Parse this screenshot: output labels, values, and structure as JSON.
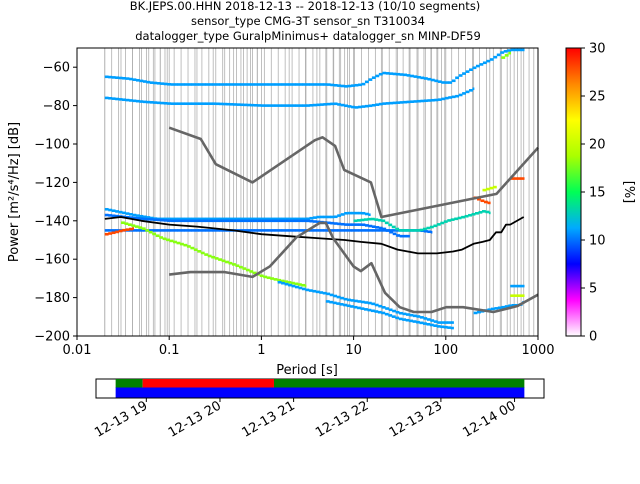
{
  "header": {
    "line1": "BK.JEPS.00.HHN   2018-12-13 -- 2018-12-13  (10/10 segments)",
    "line2": "sensor_type CMG-3T sensor_sn T310034",
    "line3": "datalogger_type GuralpMinimus+ datalogger_sn MINP-DF59"
  },
  "chart_data": [
    {
      "type": "heatmap",
      "title": "",
      "xlabel": "Period [s]",
      "ylabel": "Power [m²/s⁴/Hz] [dB]",
      "xscale": "log",
      "xlim": [
        0.01,
        1000
      ],
      "ylim": [
        -200,
        -50
      ],
      "x_ticks": [
        {
          "value": 0.01,
          "label": "0.01"
        },
        {
          "value": 0.1,
          "label": "0.1"
        },
        {
          "value": 1,
          "label": "1"
        },
        {
          "value": 10,
          "label": "10"
        },
        {
          "value": 100,
          "label": "100"
        },
        {
          "value": 1000,
          "label": "1000"
        }
      ],
      "y_ticks": [
        {
          "value": -60,
          "label": "−60"
        },
        {
          "value": -80,
          "label": "−80"
        },
        {
          "value": -100,
          "label": "−100"
        },
        {
          "value": -120,
          "label": "−120"
        },
        {
          "value": -140,
          "label": "−140"
        },
        {
          "value": -160,
          "label": "−160"
        },
        {
          "value": -180,
          "label": "−180"
        },
        {
          "value": -200,
          "label": "−200"
        }
      ],
      "grid": "vertical lines at period bins",
      "colorbar": {
        "label": "[%]",
        "range": [
          0,
          30
        ],
        "ticks": [
          {
            "value": 0,
            "label": "0"
          },
          {
            "value": 5,
            "label": "5"
          },
          {
            "value": 10,
            "label": "10"
          },
          {
            "value": 15,
            "label": "15"
          },
          {
            "value": 20,
            "label": "20"
          },
          {
            "value": 25,
            "label": "25"
          },
          {
            "value": 30,
            "label": "30"
          }
        ],
        "colormap": [
          "#ffffff",
          "#ff00ff",
          "#0000ff",
          "#00aaff",
          "#00ff55",
          "#aaff00",
          "#ffff00",
          "#ff8800",
          "#ff0000"
        ]
      },
      "series": [
        {
          "role": "psd-band",
          "percent": 11,
          "points": [
            [
              0.02,
              -65
            ],
            [
              0.035,
              -66
            ],
            [
              0.06,
              -68
            ],
            [
              0.1,
              -69
            ],
            [
              0.3,
              -69
            ],
            [
              1,
              -69
            ],
            [
              3,
              -69
            ],
            [
              5,
              -69
            ],
            [
              8,
              -70
            ],
            [
              12,
              -69
            ],
            [
              15,
              -66
            ],
            [
              20,
              -63
            ],
            [
              35,
              -64
            ],
            [
              60,
              -66
            ],
            [
              90,
              -68
            ],
            [
              110,
              -68
            ],
            [
              130,
              -65
            ],
            [
              200,
              -60
            ],
            [
              300,
              -56
            ],
            [
              400,
              -52
            ],
            [
              500,
              -51
            ],
            [
              700,
              -51
            ]
          ]
        },
        {
          "role": "psd-band",
          "percent": 11,
          "points": [
            [
              0.02,
              -76
            ],
            [
              0.05,
              -78
            ],
            [
              0.1,
              -79
            ],
            [
              0.3,
              -79
            ],
            [
              1,
              -80
            ],
            [
              3,
              -80
            ],
            [
              6,
              -79
            ],
            [
              10,
              -81
            ],
            [
              15,
              -80
            ],
            [
              20,
              -79
            ],
            [
              40,
              -78
            ],
            [
              80,
              -77
            ],
            [
              100,
              -76
            ],
            [
              130,
              -75
            ],
            [
              200,
              -71
            ]
          ]
        },
        {
          "role": "psd-band",
          "percent": 11,
          "points": [
            [
              0.02,
              -134
            ],
            [
              0.04,
              -137
            ],
            [
              0.07,
              -139
            ],
            [
              0.2,
              -139
            ],
            [
              0.5,
              -139
            ],
            [
              1,
              -139
            ],
            [
              2,
              -139
            ],
            [
              3,
              -139
            ],
            [
              4,
              -138
            ],
            [
              6,
              -138
            ],
            [
              8,
              -136
            ],
            [
              12,
              -136
            ],
            [
              15,
              -137
            ]
          ]
        },
        {
          "role": "psd-band",
          "percent": 10,
          "points": [
            [
              0.02,
              -137
            ],
            [
              0.05,
              -139
            ],
            [
              0.1,
              -140
            ],
            [
              0.5,
              -140
            ],
            [
              1,
              -140
            ],
            [
              2,
              -140
            ],
            [
              3,
              -140
            ],
            [
              5,
              -141
            ],
            [
              8,
              -142
            ],
            [
              12,
              -142
            ],
            [
              20,
              -144
            ],
            [
              30,
              -148
            ],
            [
              40,
              -148
            ]
          ]
        },
        {
          "role": "psd-band",
          "percent": 10,
          "points": [
            [
              0.02,
              -145
            ],
            [
              0.1,
              -145
            ],
            [
              0.5,
              -145
            ],
            [
              1,
              -145
            ],
            [
              3,
              -145
            ],
            [
              10,
              -145
            ],
            [
              20,
              -145
            ],
            [
              30,
              -145
            ],
            [
              50,
              -145
            ],
            [
              70,
              -146
            ]
          ]
        },
        {
          "role": "psd-band",
          "percent": 18,
          "points": [
            [
              0.03,
              -141
            ],
            [
              0.05,
              -144
            ],
            [
              0.08,
              -149
            ],
            [
              0.15,
              -153
            ],
            [
              0.25,
              -158
            ],
            [
              0.5,
              -163
            ],
            [
              1,
              -169
            ],
            [
              1.5,
              -171
            ],
            [
              3,
              -174
            ]
          ]
        },
        {
          "role": "psd-band",
          "percent": 11,
          "points": [
            [
              1.5,
              -172
            ],
            [
              3,
              -176
            ],
            [
              5,
              -178
            ],
            [
              8,
              -181
            ],
            [
              15,
              -183
            ],
            [
              20,
              -185
            ],
            [
              30,
              -188
            ],
            [
              50,
              -190
            ],
            [
              80,
              -193
            ],
            [
              120,
              -193
            ]
          ]
        },
        {
          "role": "psd-band",
          "percent": 11,
          "points": [
            [
              5,
              -182
            ],
            [
              10,
              -185
            ],
            [
              20,
              -188
            ],
            [
              30,
              -191
            ],
            [
              50,
              -193
            ],
            [
              80,
              -195
            ],
            [
              120,
              -196
            ]
          ]
        },
        {
          "role": "psd-band",
          "percent": 13,
          "points": [
            [
              10,
              -140
            ],
            [
              15,
              -139
            ],
            [
              20,
              -140
            ],
            [
              30,
              -145
            ],
            [
              50,
              -145
            ],
            [
              70,
              -143
            ],
            [
              100,
              -140
            ],
            [
              150,
              -138
            ],
            [
              250,
              -135
            ],
            [
              300,
              -136
            ]
          ]
        },
        {
          "role": "psd-band",
          "percent": 11,
          "points": [
            [
              200,
              -188
            ],
            [
              300,
              -186
            ],
            [
              400,
              -185
            ],
            [
              500,
              -184
            ],
            [
              600,
              -184
            ],
            [
              700,
              -182
            ]
          ]
        },
        {
          "role": "psd-band",
          "percent": 11,
          "points": [
            [
              500,
              -174
            ],
            [
              700,
              -174
            ]
          ]
        },
        {
          "role": "psd-band",
          "percent": 20,
          "points": [
            [
              500,
              -179
            ],
            [
              700,
              -179
            ]
          ]
        },
        {
          "role": "psd-band",
          "percent": 28,
          "points": [
            [
              0.02,
              -147
            ],
            [
              0.025,
              -146
            ],
            [
              0.03,
              -145
            ],
            [
              0.04,
              -144
            ]
          ]
        },
        {
          "role": "psd-band",
          "percent": 28,
          "points": [
            [
              200,
              -128
            ],
            [
              250,
              -130
            ],
            [
              300,
              -131
            ]
          ]
        },
        {
          "role": "psd-band",
          "percent": 28,
          "points": [
            [
              500,
              -118
            ],
            [
              700,
              -118
            ]
          ]
        },
        {
          "role": "psd-band",
          "percent": 20,
          "points": [
            [
              250,
              -124
            ],
            [
              350,
              -122
            ]
          ]
        },
        {
          "role": "psd-band",
          "percent": 18,
          "points": [
            [
              400,
              -55
            ],
            [
              500,
              -52
            ]
          ]
        },
        {
          "role": "median",
          "points": [
            [
              0.02,
              -139
            ],
            [
              0.03,
              -138
            ],
            [
              0.05,
              -140
            ],
            [
              0.1,
              -142
            ],
            [
              0.2,
              -143
            ],
            [
              0.5,
              -145
            ],
            [
              1,
              -147
            ],
            [
              2,
              -148
            ],
            [
              4,
              -149
            ],
            [
              8,
              -150
            ],
            [
              12,
              -151
            ],
            [
              20,
              -152
            ],
            [
              30,
              -155
            ],
            [
              50,
              -157
            ],
            [
              80,
              -157
            ],
            [
              120,
              -156
            ],
            [
              150,
              -155
            ],
            [
              200,
              -152
            ],
            [
              250,
              -151
            ],
            [
              300,
              -150
            ],
            [
              350,
              -146
            ],
            [
              400,
              -146
            ],
            [
              450,
              -142
            ],
            [
              500,
              -142
            ],
            [
              700,
              -138
            ]
          ]
        },
        {
          "role": "noise-model-high",
          "points": [
            [
              0.1,
              -91.5
            ],
            [
              0.22,
              -97.4
            ],
            [
              0.32,
              -110.5
            ],
            [
              0.8,
              -120
            ],
            [
              3.8,
              -98
            ],
            [
              4.6,
              -96.5
            ],
            [
              6.3,
              -101
            ],
            [
              7.9,
              -113.5
            ],
            [
              15.4,
              -120
            ],
            [
              20,
              -138
            ],
            [
              354.8,
              -126
            ],
            [
              10000,
              -48.5
            ]
          ]
        },
        {
          "role": "noise-model-low",
          "points": [
            [
              0.1,
              -168
            ],
            [
              0.17,
              -166.7
            ],
            [
              0.4,
              -166.7
            ],
            [
              0.8,
              -169.2
            ],
            [
              1.24,
              -163.7
            ],
            [
              2.4,
              -148.6
            ],
            [
              4.3,
              -141.1
            ],
            [
              5,
              -141.1
            ],
            [
              6,
              -149
            ],
            [
              10,
              -163.8
            ],
            [
              12,
              -166.2
            ],
            [
              15.6,
              -162.1
            ],
            [
              21.9,
              -177.5
            ],
            [
              31.6,
              -185
            ],
            [
              45,
              -187.5
            ],
            [
              70,
              -187.5
            ],
            [
              101,
              -185
            ],
            [
              154,
              -185
            ],
            [
              328,
              -187.5
            ],
            [
              600,
              -184.4
            ],
            [
              10000,
              -151.9
            ]
          ]
        }
      ]
    },
    {
      "type": "timeline",
      "title": "",
      "x_ticks": [
        {
          "value": "2018-12-13T19:00",
          "label": "12-13 19"
        },
        {
          "value": "2018-12-13T20:00",
          "label": "12-13 20"
        },
        {
          "value": "2018-12-13T21:00",
          "label": "12-13 21"
        },
        {
          "value": "2018-12-13T22:00",
          "label": "12-13 22"
        },
        {
          "value": "2018-12-13T23:00",
          "label": "12-13 23"
        },
        {
          "value": "2018-12-14T00:00",
          "label": "12-14 00"
        }
      ],
      "xlim": [
        "2018-12-13T18:19",
        "2018-12-14T00:24"
      ],
      "bars": [
        {
          "row": "top",
          "start": "2018-12-13T18:35",
          "end": "2018-12-13T18:57",
          "color": "#008000"
        },
        {
          "row": "top",
          "start": "2018-12-13T18:57",
          "end": "2018-12-13T20:44",
          "color": "#ff0000"
        },
        {
          "row": "top",
          "start": "2018-12-13T20:44",
          "end": "2018-12-14T00:08",
          "color": "#008000"
        },
        {
          "row": "bottom",
          "start": "2018-12-13T18:35",
          "end": "2018-12-14T00:08",
          "color": "#0000ff"
        }
      ]
    }
  ]
}
